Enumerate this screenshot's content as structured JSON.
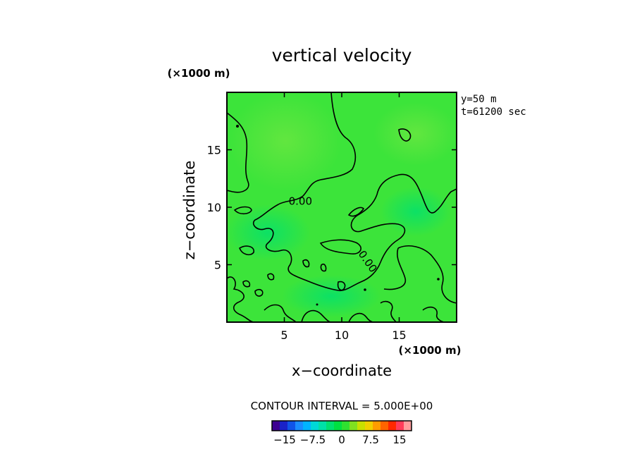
{
  "chart_data": {
    "type": "heatmap",
    "title": "vertical velocity",
    "xlabel": "x−coordinate",
    "ylabel": "z−coordinate",
    "x_unit": "(×1000 m)",
    "y_unit": "(×1000 m)",
    "xlim": [
      0,
      20
    ],
    "ylim": [
      0,
      20
    ],
    "x_ticks": [
      5,
      10,
      15
    ],
    "y_ticks": [
      5,
      10,
      15
    ],
    "x_tick_labels": [
      "5",
      "10",
      "15"
    ],
    "y_tick_labels": [
      "5",
      "10",
      "15"
    ],
    "info_lines": [
      "y=50  m",
      "t=61200 sec"
    ],
    "contour_labels": [
      {
        "text": "0.00",
        "x": 6.4,
        "y": 10.2
      },
      {
        "text": "0.00",
        "x": 12.0,
        "y": 5.1
      }
    ],
    "contour_interval_text": "CONTOUR INTERVAL = 5.000E+00",
    "colorbar": {
      "colors": [
        "#3d0091",
        "#1a22c8",
        "#1054e8",
        "#1a8cff",
        "#00b4ff",
        "#00d8d8",
        "#00e0a8",
        "#00e070",
        "#00e040",
        "#30e030",
        "#80e020",
        "#c8e000",
        "#f0d000",
        "#ff9c00",
        "#ff6400",
        "#ff2800",
        "#ff3c5a",
        "#ff9c9c"
      ],
      "tick_labels": [
        "−15",
        "−7.5",
        "0",
        "7.5",
        "15"
      ]
    }
  }
}
